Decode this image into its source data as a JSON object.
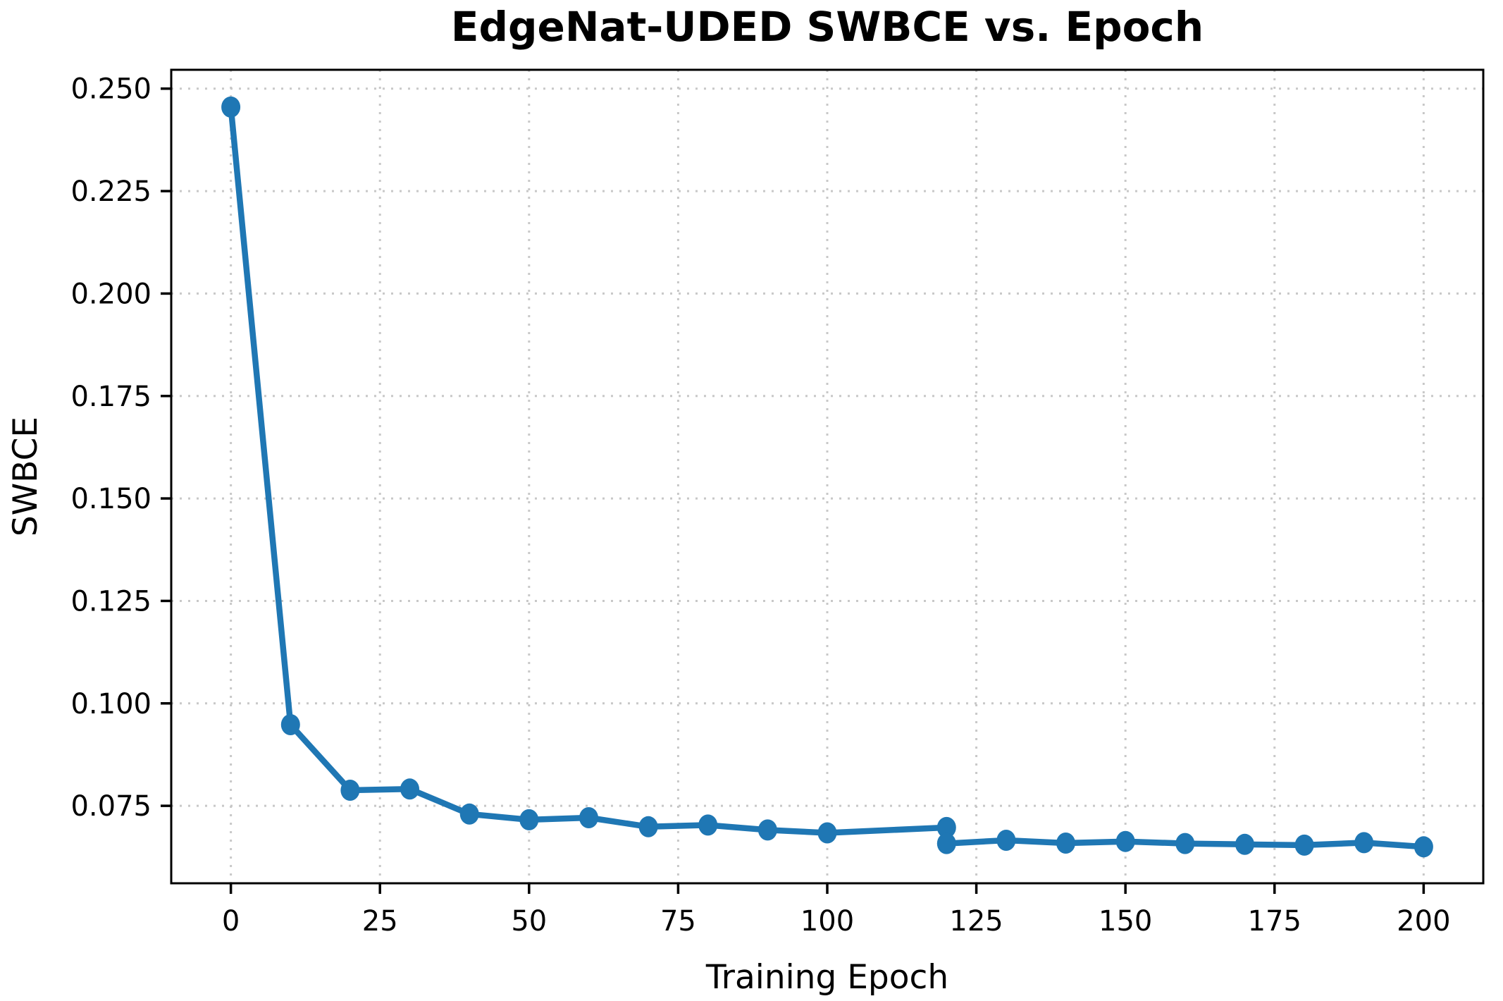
{
  "chart_data": {
    "type": "line",
    "title": "EdgeNat-UDED SWBCE vs. Epoch",
    "xlabel": "Training Epoch",
    "ylabel": "SWBCE",
    "x_ticks": [
      0,
      25,
      50,
      75,
      100,
      125,
      150,
      175,
      200
    ],
    "y_tick_labels": [
      "0.075",
      "0.100",
      "0.125",
      "0.150",
      "0.175",
      "0.200",
      "0.225",
      "0.250"
    ],
    "xlim": [
      -10,
      210
    ],
    "ylim": [
      0.0561,
      0.2546
    ],
    "grid": "dotted",
    "grid_color": "#c8c8c8",
    "legend": "none",
    "line_color": "#1f77b4",
    "spine_color": "#000000",
    "series": [
      {
        "name": "SWBCE",
        "color": "#1f77b4",
        "marker": "circle",
        "x": [
          0,
          10,
          20,
          30,
          40,
          50,
          60,
          70,
          80,
          90,
          100,
          120,
          120,
          130,
          140,
          150,
          160,
          170,
          180,
          190,
          200
        ],
        "y": [
          0.2455,
          0.0948,
          0.0788,
          0.0791,
          0.073,
          0.0716,
          0.0721,
          0.0699,
          0.0703,
          0.0691,
          0.0684,
          0.0697,
          0.0658,
          0.0666,
          0.0659,
          0.0663,
          0.0658,
          0.0656,
          0.0654,
          0.066,
          0.065
        ]
      }
    ]
  }
}
